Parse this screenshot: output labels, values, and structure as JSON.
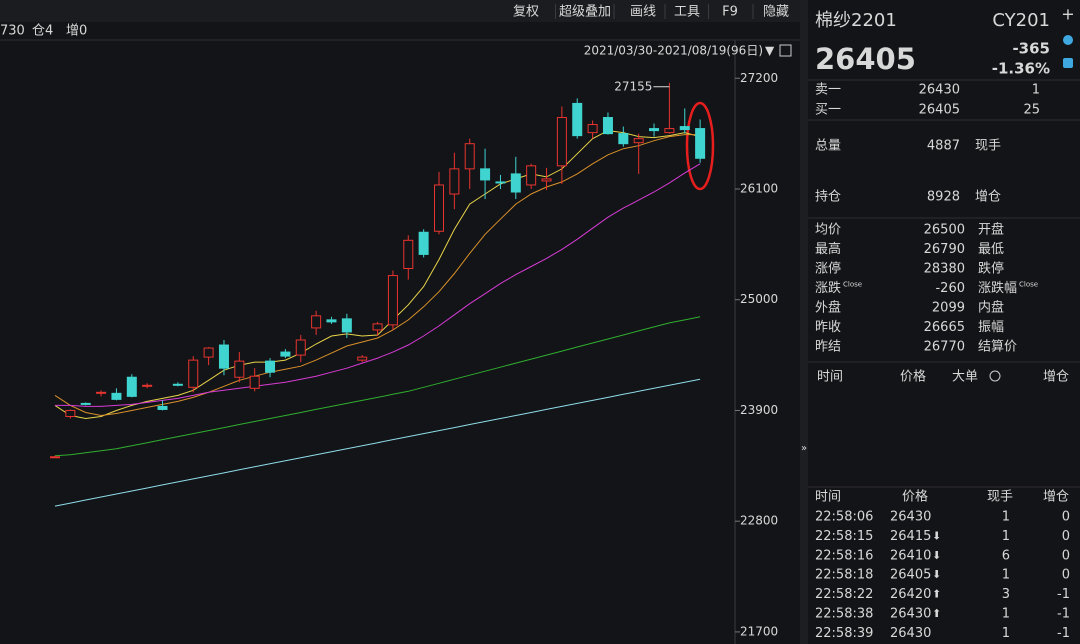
{
  "toolbar": {
    "buttons": [
      "复权",
      "超级叠加",
      "画线",
      "工具",
      "F9",
      "隐藏"
    ],
    "info": [
      "730",
      "仓4",
      "增0"
    ],
    "range": "2021/03/30-2021/08/19(96日)"
  },
  "chart_data": {
    "type": "candlestick",
    "ylim": [
      21580,
      27580
    ],
    "yticks": [
      21700,
      22800,
      23900,
      25000,
      26100,
      27200
    ],
    "open": [
      23440,
      23840,
      23970,
      24070,
      24070,
      24230,
      24140,
      23940,
      24160,
      24130,
      24430,
      24550,
      24230,
      24120,
      24390,
      24480,
      24450,
      24720,
      24800,
      24810,
      24400,
      24700,
      24750,
      25310,
      25670,
      25680,
      26050,
      26300,
      26300,
      26170,
      26250,
      26140,
      26180,
      26330,
      26950,
      26660,
      26810,
      26650,
      26560,
      26700,
      26660,
      26720,
      26700
    ],
    "high": [
      23450,
      23910,
      23980,
      24100,
      24120,
      24260,
      24170,
      24000,
      24180,
      24440,
      24530,
      24600,
      24480,
      24320,
      24420,
      24510,
      24650,
      24890,
      24830,
      24860,
      24450,
      24780,
      25290,
      25640,
      25700,
      26270,
      26460,
      26600,
      26500,
      26240,
      26420,
      26350,
      26310,
      26920,
      27000,
      26780,
      26860,
      26720,
      26650,
      26750,
      27155,
      26900,
      26790
    ],
    "low": [
      23430,
      23820,
      23950,
      24040,
      24000,
      24030,
      24120,
      23900,
      24140,
      24080,
      24350,
      24250,
      24180,
      24090,
      24230,
      24420,
      24380,
      24650,
      24760,
      24620,
      24380,
      24640,
      24700,
      25200,
      25420,
      25650,
      25900,
      26100,
      26000,
      26100,
      26000,
      26100,
      26090,
      26150,
      26600,
      26600,
      26640,
      26520,
      26250,
      26620,
      26650,
      26650,
      26360
    ],
    "close": [
      23440,
      23900,
      23960,
      24080,
      24010,
      24040,
      24150,
      23910,
      24150,
      24400,
      24520,
      24320,
      24390,
      24240,
      24280,
      24440,
      24600,
      24840,
      24780,
      24680,
      24430,
      24760,
      25240,
      25590,
      25450,
      26140,
      26300,
      26550,
      26190,
      26160,
      26070,
      26330,
      26200,
      26810,
      26630,
      26740,
      26650,
      26550,
      26600,
      26680,
      26700,
      26690,
      26405
    ],
    "up_color": "#e8342f",
    "down_color": "#3fd4d0",
    "lines": [
      {
        "color": "#e8d44a",
        "values": [
          23950,
          23850,
          23820,
          23840,
          23900,
          23950,
          23990,
          24020,
          24050,
          24100,
          24200,
          24300,
          24350,
          24380,
          24380,
          24400,
          24470,
          24560,
          24640,
          24660,
          24640,
          24650,
          24800,
          24950,
          25130,
          25400,
          25700,
          25950,
          26050,
          26150,
          26200,
          26250,
          26220,
          26300,
          26450,
          26600,
          26680,
          26660,
          26620,
          26610,
          26630,
          26660,
          26620
        ]
      },
      {
        "color": "#d9902b",
        "values": [
          24050,
          23950,
          23880,
          23850,
          23870,
          23900,
          23930,
          23960,
          23990,
          24030,
          24080,
          24140,
          24200,
          24240,
          24280,
          24310,
          24340,
          24400,
          24470,
          24540,
          24580,
          24620,
          24700,
          24800,
          24930,
          25080,
          25260,
          25460,
          25650,
          25800,
          25950,
          26050,
          26120,
          26170,
          26250,
          26350,
          26440,
          26500,
          26530,
          26580,
          26620,
          26640,
          26640
        ]
      },
      {
        "color": "#d63bd6",
        "values": [
          23950,
          23950,
          23940,
          23940,
          23950,
          23960,
          23980,
          24000,
          24020,
          24050,
          24080,
          24100,
          24120,
          24140,
          24160,
          24180,
          24210,
          24240,
          24280,
          24320,
          24370,
          24420,
          24480,
          24550,
          24640,
          24740,
          24850,
          24960,
          25060,
          25160,
          25250,
          25330,
          25410,
          25500,
          25600,
          25710,
          25820,
          25910,
          25990,
          26070,
          26160,
          26260,
          26350
        ]
      },
      {
        "color": "#2fae2f",
        "values": [
          23450,
          23460,
          23480,
          23500,
          23520,
          23550,
          23580,
          23610,
          23640,
          23670,
          23700,
          23730,
          23760,
          23790,
          23820,
          23850,
          23880,
          23910,
          23940,
          23970,
          24000,
          24030,
          24060,
          24090,
          24130,
          24170,
          24210,
          24250,
          24290,
          24330,
          24370,
          24410,
          24450,
          24490,
          24530,
          24570,
          24610,
          24650,
          24690,
          24730,
          24770,
          24800,
          24830
        ]
      },
      {
        "color": "#8fdcea",
        "values": [
          22950,
          22980,
          23010,
          23040,
          23070,
          23100,
          23130,
          23160,
          23190,
          23220,
          23250,
          23280,
          23310,
          23340,
          23370,
          23400,
          23430,
          23460,
          23490,
          23520,
          23550,
          23580,
          23610,
          23640,
          23670,
          23700,
          23730,
          23760,
          23790,
          23820,
          23850,
          23880,
          23910,
          23940,
          23970,
          24000,
          24030,
          24060,
          24090,
          24120,
          24150,
          24180,
          24210
        ]
      }
    ],
    "annotation": "27155"
  },
  "quote": {
    "name": "棉纱2201",
    "code": "CY201",
    "price": "26405",
    "change": "-365",
    "percent": "-1.36%",
    "book": [
      [
        "卖一",
        "26430",
        "1"
      ],
      [
        "买一",
        "26405",
        "25"
      ]
    ],
    "volume": [
      [
        "总量",
        "4887",
        "现手"
      ],
      [
        "持仓",
        "8928",
        "增仓"
      ]
    ],
    "stats": [
      {
        "label": "均价",
        "value": "26500",
        "color": "green",
        "label2": "开盘"
      },
      {
        "label": "最高",
        "value": "26790",
        "color": "red",
        "label2": "最低"
      },
      {
        "label": "涨停",
        "value": "28380",
        "color": "red",
        "label2": "跌停"
      },
      {
        "label": "涨跌",
        "sup": "Close",
        "value": "-260",
        "color": "green",
        "label2": "涨跌幅",
        "sup2": "Close"
      },
      {
        "label": "外盘",
        "value": "2099",
        "color": "red",
        "label2": "内盘"
      },
      {
        "label": "昨收",
        "value": "26665",
        "color": "white",
        "label2": "振幅"
      },
      {
        "label": "昨结",
        "value": "26770",
        "color": "white",
        "label2": "结算价"
      }
    ],
    "big_header": [
      "时间",
      "价格",
      "大单",
      "增仓"
    ],
    "tick_header": [
      "时间",
      "价格",
      "现手",
      "增仓"
    ],
    "ticks": [
      {
        "time": "22:58:06",
        "price": "26430",
        "dir": null,
        "qty": "1",
        "qty_color": "green",
        "oi": "0"
      },
      {
        "time": "22:58:15",
        "price": "26415",
        "dir": "down",
        "qty": "1",
        "qty_color": "green",
        "oi": "0"
      },
      {
        "time": "22:58:16",
        "price": "26410",
        "dir": "down",
        "qty": "6",
        "qty_color": "green",
        "oi": "0"
      },
      {
        "time": "22:58:18",
        "price": "26405",
        "dir": "down",
        "qty": "1",
        "qty_color": "green",
        "oi": "0"
      },
      {
        "time": "22:58:22",
        "price": "26420",
        "dir": "up",
        "qty": "3",
        "qty_color": "red",
        "oi": "-1"
      },
      {
        "time": "22:58:38",
        "price": "26430",
        "dir": "up",
        "qty": "1",
        "qty_color": "red",
        "oi": "-1"
      },
      {
        "time": "22:58:39",
        "price": "26430",
        "dir": null,
        "qty": "1",
        "qty_color": "green",
        "oi": "-1"
      }
    ]
  }
}
